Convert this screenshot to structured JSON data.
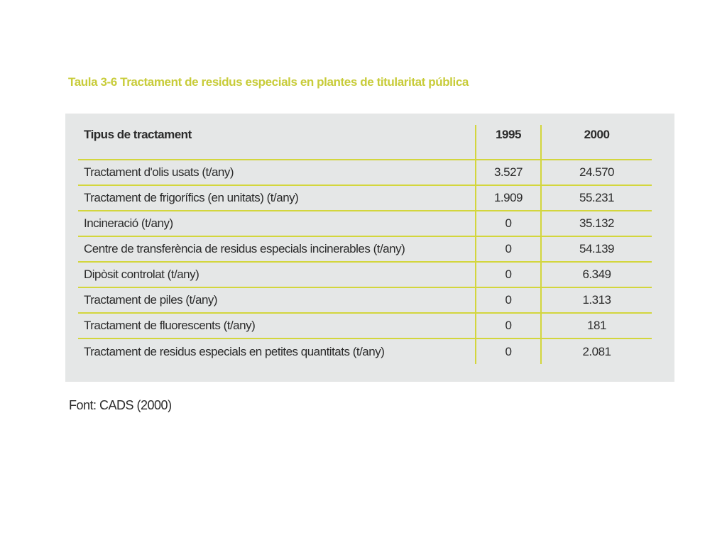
{
  "title": "Taula 3-6 Tractament de residus especials en plantes de titularitat pública",
  "table": {
    "headers": [
      "Tipus de tractament",
      "1995",
      "2000"
    ],
    "rows": [
      [
        "Tractament d'olis usats (t/any)",
        "3.527",
        "24.570"
      ],
      [
        "Tractament de frigorífics (en unitats) (t/any)",
        "1.909",
        "55.231"
      ],
      [
        "Incineració (t/any)",
        "0",
        "35.132"
      ],
      [
        "Centre de transferència de residus especials incinerables (t/any)",
        "0",
        "54.139"
      ],
      [
        "Dipòsit controlat (t/any)",
        "0",
        "6.349"
      ],
      [
        "Tractament de piles (t/any)",
        "0",
        "1.313"
      ],
      [
        "Tractament de fluorescents (t/any)",
        "0",
        "181"
      ],
      [
        "Tractament de residus especials en petites quantitats (t/any)",
        "0",
        "2.081"
      ]
    ]
  },
  "source": "Font: CADS (2000)",
  "colors": {
    "accent": "#d3d63d",
    "title": "#c8cc3a",
    "panel": "#e5e7e7",
    "text": "#2b2b2b"
  }
}
